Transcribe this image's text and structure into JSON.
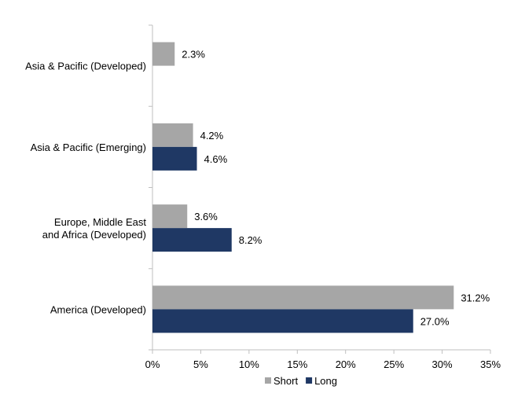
{
  "chart_data": {
    "type": "bar",
    "orientation": "horizontal",
    "categories": [
      [
        "Asia & Pacific (Developed)"
      ],
      [
        "Asia & Pacific (Emerging)"
      ],
      [
        "Europe, Middle East",
        "and Africa (Developed)"
      ],
      [
        "America (Developed)"
      ]
    ],
    "series": [
      {
        "name": "Short",
        "color": "#a6a6a6",
        "values": [
          2.3,
          4.2,
          3.6,
          31.2
        ],
        "labels": [
          "2.3%",
          "4.2%",
          "3.6%",
          "31.2%"
        ]
      },
      {
        "name": "Long",
        "color": "#1f3864",
        "values": [
          null,
          4.6,
          8.2,
          27.0
        ],
        "labels": [
          "",
          "4.6%",
          "8.2%",
          "27.0%"
        ]
      }
    ],
    "xlim": [
      0,
      35
    ],
    "xticks": [
      0,
      5,
      10,
      15,
      20,
      25,
      30,
      35
    ],
    "xtick_labels": [
      "0%",
      "5%",
      "10%",
      "15%",
      "20%",
      "25%",
      "30%",
      "35%"
    ],
    "grid": false,
    "legend_position": "bottom-center"
  }
}
